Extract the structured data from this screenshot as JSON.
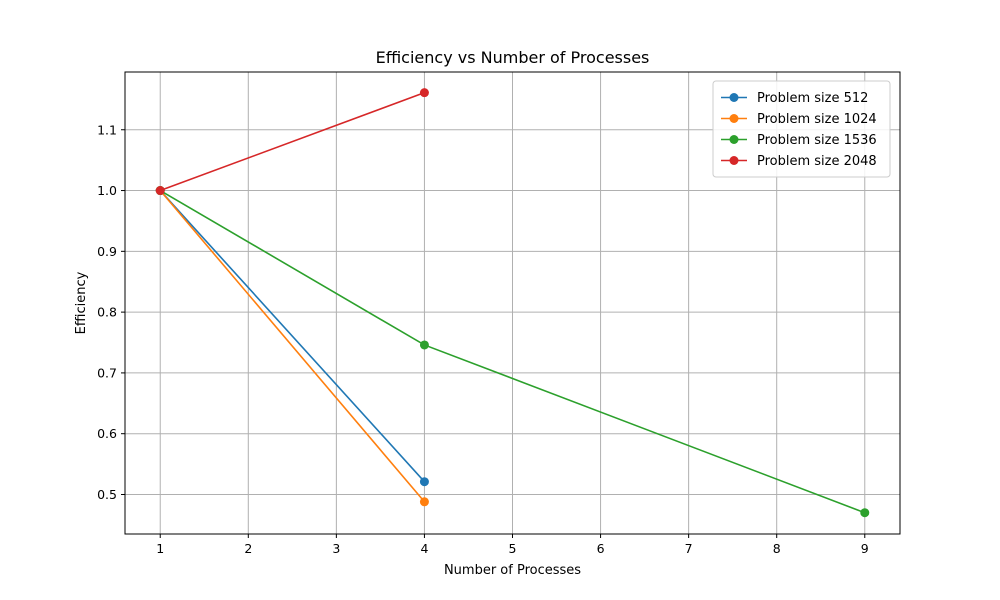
{
  "chart_data": {
    "type": "line",
    "title": "Efficiency vs Number of Processes",
    "xlabel": "Number of Processes",
    "ylabel": "Efficiency",
    "xlim": [
      0.6,
      9.4
    ],
    "ylim": [
      0.435,
      1.195
    ],
    "xticks": [
      1,
      2,
      3,
      4,
      5,
      6,
      7,
      8,
      9
    ],
    "yticks": [
      0.5,
      0.6,
      0.7,
      0.8,
      0.9,
      1.0,
      1.1
    ],
    "grid": true,
    "legend_position": "top-right",
    "series": [
      {
        "name": "Problem size 512",
        "color": "#1f77b4",
        "x": [
          1,
          4
        ],
        "y": [
          1.0,
          0.521
        ]
      },
      {
        "name": "Problem size 1024",
        "color": "#ff7f0e",
        "x": [
          1,
          4
        ],
        "y": [
          1.0,
          0.488
        ]
      },
      {
        "name": "Problem size 1536",
        "color": "#2ca02c",
        "x": [
          1,
          4,
          9
        ],
        "y": [
          1.0,
          0.746,
          0.47
        ]
      },
      {
        "name": "Problem size 2048",
        "color": "#d62728",
        "x": [
          1,
          4
        ],
        "y": [
          1.0,
          1.161
        ]
      }
    ]
  }
}
